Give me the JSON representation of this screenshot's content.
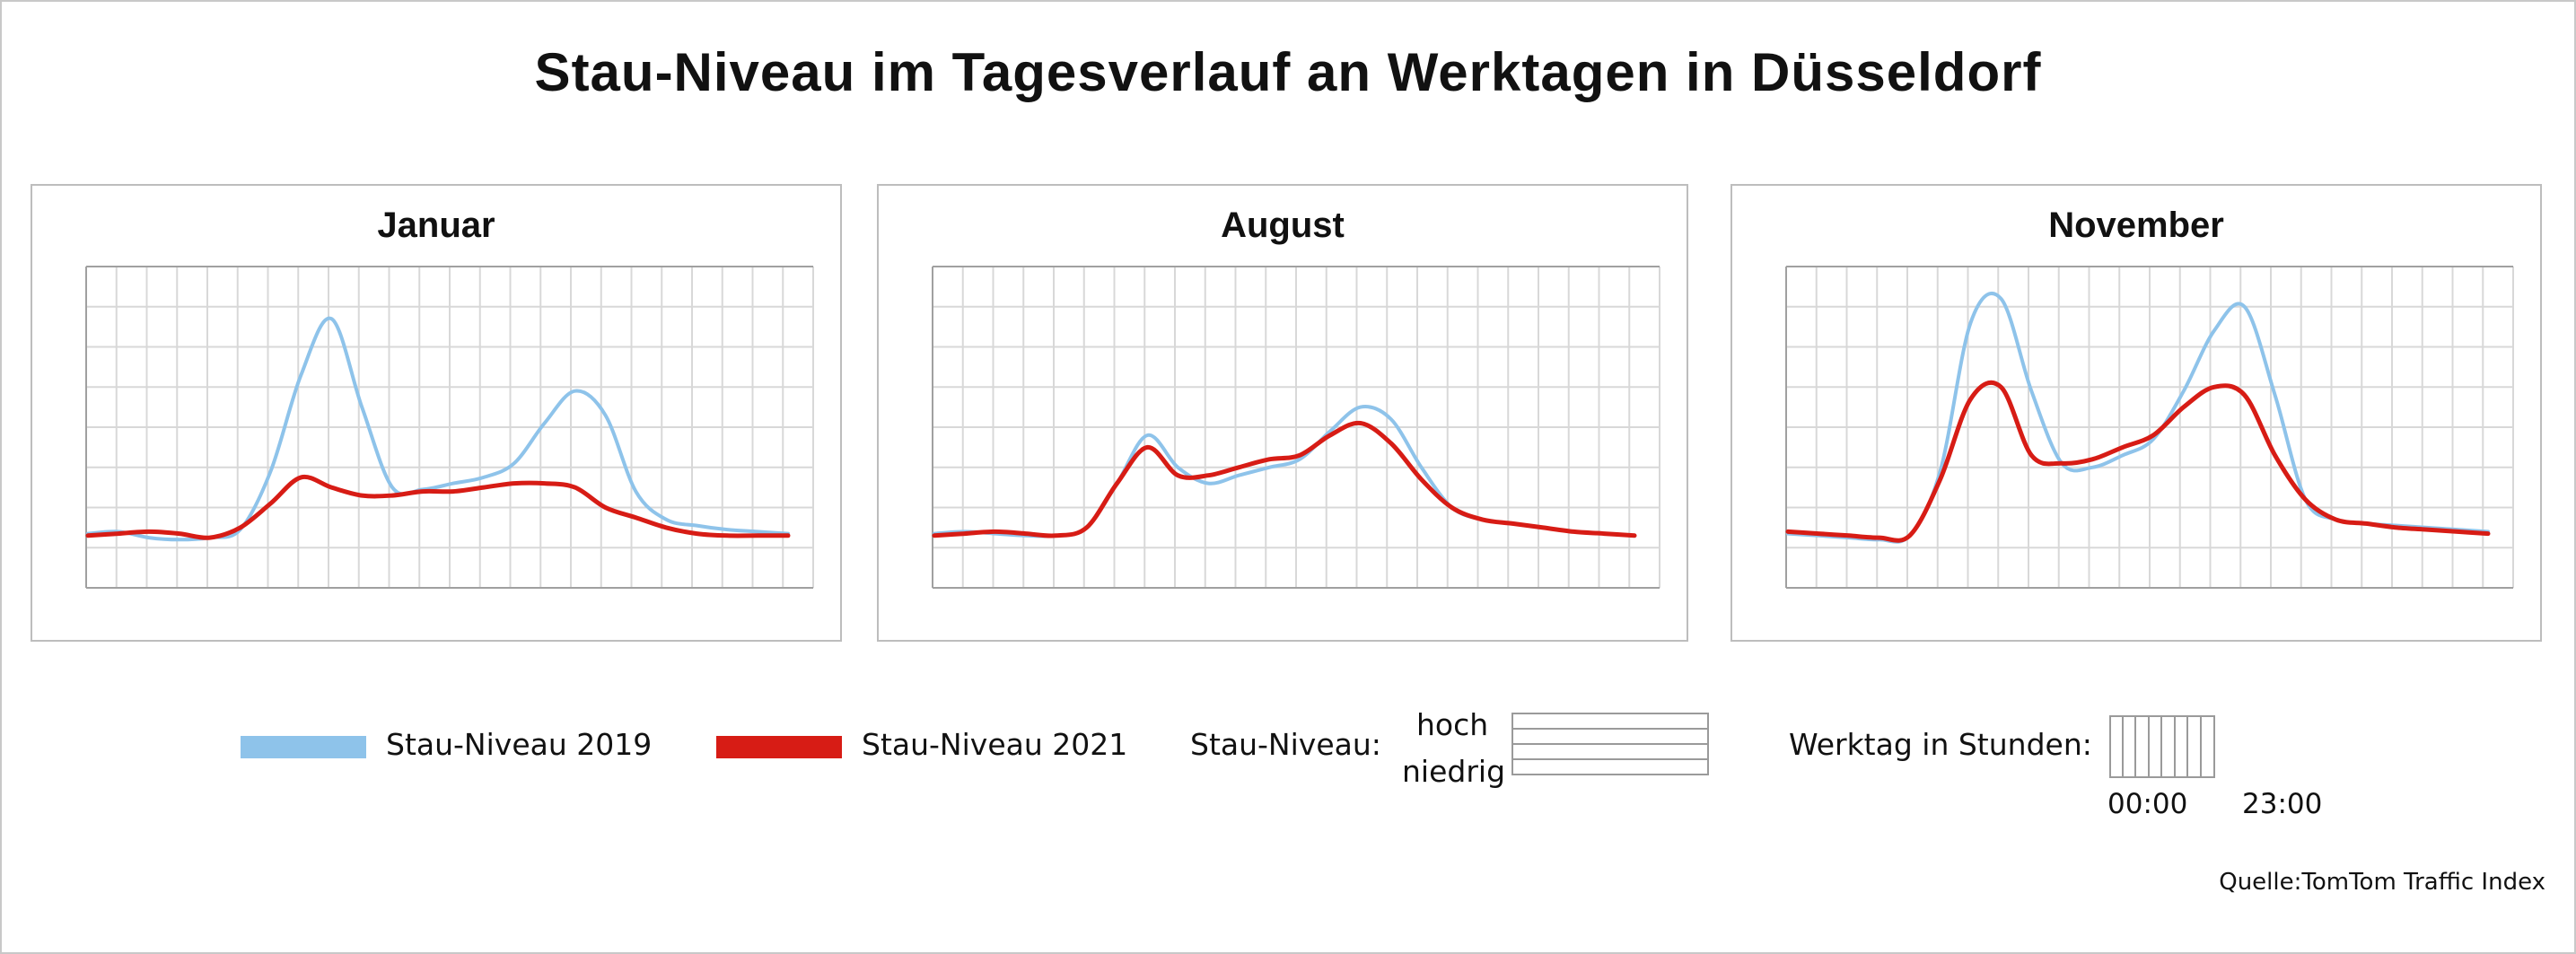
{
  "title": "Stau-Niveau im Tagesverlauf an Werktagen in Düsseldorf",
  "colors": {
    "series_2019": "#8ec3ea",
    "series_2021": "#d71c15",
    "grid": "#d8d8d8",
    "axis": "#a0a0a0"
  },
  "chart_data": [
    {
      "type": "line",
      "title": "Januar",
      "x": [
        0,
        1,
        2,
        3,
        4,
        5,
        6,
        7,
        8,
        9,
        10,
        11,
        12,
        13,
        14,
        15,
        16,
        17,
        18,
        19,
        20,
        21,
        22,
        23
      ],
      "ylim": [
        0,
        8
      ],
      "grid": true,
      "series": [
        {
          "name": "Stau-Niveau 2019",
          "values": [
            1.35,
            1.4,
            1.25,
            1.2,
            1.25,
            1.45,
            2.9,
            5.3,
            6.7,
            4.5,
            2.5,
            2.45,
            2.6,
            2.75,
            3.1,
            4.1,
            4.9,
            4.3,
            2.4,
            1.7,
            1.55,
            1.45,
            1.4,
            1.35
          ]
        },
        {
          "name": "Stau-Niveau 2021",
          "values": [
            1.3,
            1.35,
            1.4,
            1.35,
            1.25,
            1.5,
            2.1,
            2.75,
            2.5,
            2.3,
            2.3,
            2.4,
            2.4,
            2.5,
            2.6,
            2.6,
            2.5,
            2.0,
            1.75,
            1.5,
            1.35,
            1.3,
            1.3,
            1.3
          ]
        }
      ]
    },
    {
      "type": "line",
      "title": "August",
      "x": [
        0,
        1,
        2,
        3,
        4,
        5,
        6,
        7,
        8,
        9,
        10,
        11,
        12,
        13,
        14,
        15,
        16,
        17,
        18,
        19,
        20,
        21,
        22,
        23
      ],
      "ylim": [
        0,
        8
      ],
      "grid": true,
      "series": [
        {
          "name": "Stau-Niveau 2019",
          "values": [
            1.35,
            1.4,
            1.35,
            1.3,
            1.3,
            1.5,
            2.6,
            3.8,
            3.0,
            2.6,
            2.8,
            3.0,
            3.2,
            3.9,
            4.5,
            4.2,
            3.0,
            2.0,
            1.7,
            1.6,
            1.5,
            1.4,
            1.35,
            1.3
          ]
        },
        {
          "name": "Stau-Niveau 2021",
          "values": [
            1.3,
            1.35,
            1.4,
            1.35,
            1.3,
            1.5,
            2.6,
            3.5,
            2.8,
            2.8,
            3.0,
            3.2,
            3.3,
            3.8,
            4.1,
            3.6,
            2.7,
            2.0,
            1.7,
            1.6,
            1.5,
            1.4,
            1.35,
            1.3
          ]
        }
      ]
    },
    {
      "type": "line",
      "title": "November",
      "x": [
        0,
        1,
        2,
        3,
        4,
        5,
        6,
        7,
        8,
        9,
        10,
        11,
        12,
        13,
        14,
        15,
        16,
        17,
        18,
        19,
        20,
        21,
        22,
        23
      ],
      "ylim": [
        0,
        8
      ],
      "grid": true,
      "series": [
        {
          "name": "Stau-Niveau 2019",
          "values": [
            1.35,
            1.3,
            1.25,
            1.2,
            1.3,
            2.9,
            6.6,
            7.2,
            4.9,
            3.1,
            3.0,
            3.3,
            3.7,
            4.9,
            6.4,
            7.0,
            4.8,
            2.2,
            1.7,
            1.6,
            1.55,
            1.5,
            1.45,
            1.4
          ]
        },
        {
          "name": "Stau-Niveau 2021",
          "values": [
            1.4,
            1.35,
            1.3,
            1.25,
            1.3,
            2.7,
            4.7,
            5.0,
            3.3,
            3.1,
            3.2,
            3.5,
            3.8,
            4.5,
            5.0,
            4.8,
            3.3,
            2.2,
            1.7,
            1.6,
            1.5,
            1.45,
            1.4,
            1.35
          ]
        }
      ]
    }
  ],
  "legend": {
    "series_2019_label": "Stau-Niveau 2019",
    "series_2021_label": "Stau-Niveau 2021",
    "level_label": "Stau-Niveau:",
    "level_high": "hoch",
    "level_low": "niedrig",
    "hours_label": "Werktag in Stunden:",
    "hours_start": "00:00",
    "hours_end": "23:00"
  },
  "source": "Quelle:TomTom Traffic Index"
}
